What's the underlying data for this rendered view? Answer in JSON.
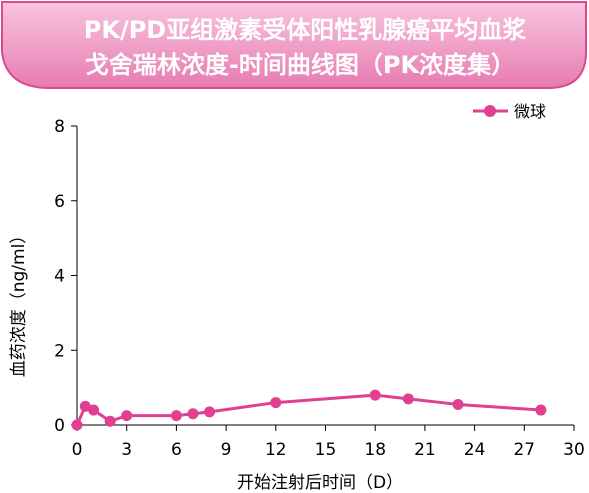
{
  "chart_data": {
    "type": "line",
    "title": "PK/PD亚组激素受体阳性乳腺癌平均血浆戈舍瑞林浓度-时间曲线图（PK浓度集）",
    "title_lines": [
      "PK/PD亚组激素受体阳性乳腺癌平均血浆",
      "戈舍瑞林浓度-时间曲线图（PK浓度集）"
    ],
    "xlabel": "开始注射后时间（D）",
    "ylabel": "血药浓度（ng/ml）",
    "xlim": [
      0,
      30
    ],
    "ylim": [
      0,
      8
    ],
    "x_ticks": [
      0,
      3,
      6,
      9,
      12,
      15,
      18,
      21,
      24,
      27,
      30
    ],
    "y_ticks": [
      0,
      2,
      4,
      6,
      8
    ],
    "grid": false,
    "legend_position": "top-right",
    "series": [
      {
        "name": "微球",
        "color": "#e0408f",
        "x": [
          0,
          0.5,
          1,
          2,
          3,
          6,
          7,
          8,
          12,
          18,
          20,
          23,
          28
        ],
        "y": [
          0,
          0.5,
          0.4,
          0.1,
          0.25,
          0.25,
          0.3,
          0.35,
          0.6,
          0.8,
          0.7,
          0.55,
          0.4
        ]
      }
    ]
  },
  "colors": {
    "banner_fill": "#f0a3c8",
    "banner_stroke": "#d94a93",
    "title_text": "#ffffff",
    "axis": "#000000"
  }
}
